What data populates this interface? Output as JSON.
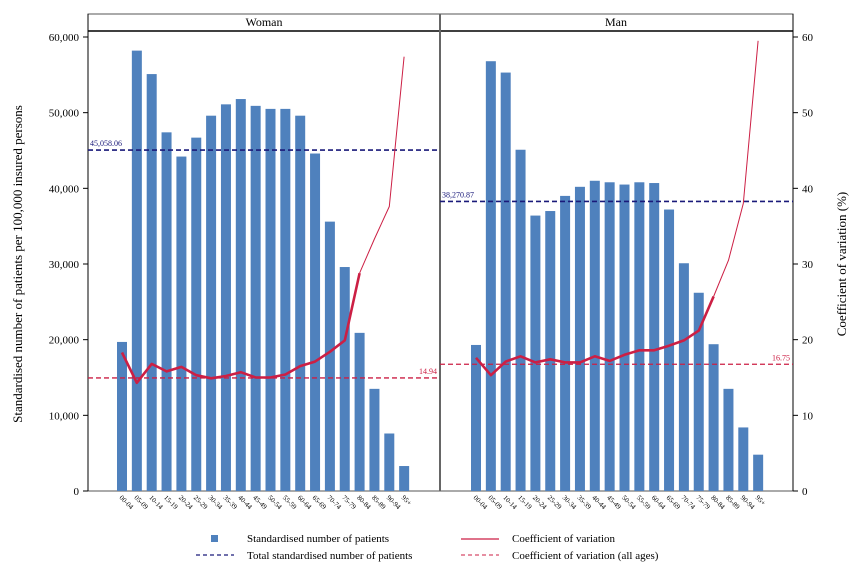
{
  "chart_data": {
    "type": "bar",
    "ylabel_left": "Standardised number of patients per 100,000 insured persons",
    "ylabel_right": "Coefficient of variation (%)",
    "ylim_left": [
      0,
      60000
    ],
    "ylim_right": [
      0,
      60
    ],
    "yticks_left": [
      "0",
      "10,000",
      "20,000",
      "30,000",
      "40,000",
      "50,000",
      "60,000"
    ],
    "yticks_right": [
      "0",
      "10",
      "20",
      "30",
      "40",
      "50",
      "60"
    ],
    "categories": [
      "00-04",
      "05-09",
      "10-14",
      "15-19",
      "20-24",
      "25-29",
      "30-34",
      "35-39",
      "40-44",
      "45-49",
      "50-54",
      "55-59",
      "60-64",
      "65-69",
      "70-74",
      "75-79",
      "80-84",
      "85-89",
      "90-94",
      "95+"
    ],
    "panels": [
      {
        "title": "Woman",
        "bars": [
          19700,
          58200,
          55100,
          47400,
          44200,
          46700,
          49600,
          51100,
          51800,
          50900,
          50500,
          50500,
          49600,
          44600,
          35600,
          29600,
          20900,
          13500,
          7600,
          3300
        ],
        "cv": [
          18.3,
          14.3,
          16.8,
          15.8,
          16.4,
          15.3,
          14.9,
          15.2,
          15.7,
          15.0,
          15.0,
          15.4,
          16.5,
          17.1,
          18.4,
          19.9,
          28.8,
          33.3,
          37.6,
          57.4
        ],
        "total": 45058.06,
        "total_label": "45,058.06",
        "cv_all": 14.94,
        "cv_all_label": "14.94"
      },
      {
        "title": "Man",
        "bars": [
          19300,
          56800,
          55300,
          45100,
          36400,
          37000,
          39000,
          40200,
          41000,
          40800,
          40500,
          40800,
          40700,
          37200,
          30100,
          26200,
          19400,
          13500,
          8400,
          4800
        ],
        "cv": [
          17.6,
          15.3,
          17.1,
          17.8,
          17.0,
          17.4,
          17.0,
          17.0,
          17.8,
          17.2,
          18.0,
          18.6,
          18.6,
          19.2,
          19.9,
          21.2,
          25.7,
          30.5,
          38.0,
          59.5
        ],
        "total": 38270.87,
        "total_label": "38,270.87",
        "cv_all": 16.75,
        "cv_all_label": "16.75"
      }
    ],
    "legend": {
      "bars": "Standardised number of patients",
      "total": "Total standardised number of patients",
      "cv": "Coefficient of variation",
      "cv_all": "Coefficient of variation (all ages)"
    },
    "colors": {
      "bar": "#4f81bd",
      "total": "#1a1a7a",
      "cv": "#cc1f44"
    }
  }
}
